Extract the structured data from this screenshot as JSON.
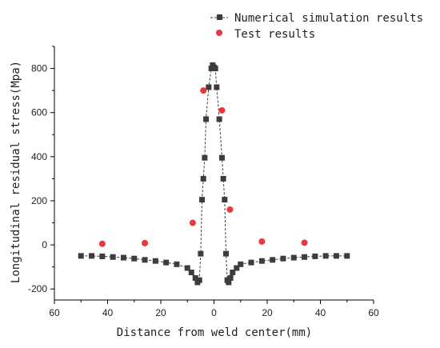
{
  "chart_data": {
    "type": "scatter",
    "title": "",
    "xlabel": "Distance from weld center(mm)",
    "ylabel": "Longitudinal residual stress(Mpa)",
    "xlim": [
      -60,
      60
    ],
    "ylim": [
      -250,
      900
    ],
    "x_tick_values": [
      -60,
      -40,
      -20,
      0,
      20,
      40,
      60
    ],
    "x_tick_labels": [
      "60",
      "40",
      "20",
      "0",
      "20",
      "40",
      "60"
    ],
    "y_ticks": [
      -200,
      0,
      200,
      400,
      600,
      800
    ],
    "grid": false,
    "legend_position": "top-right",
    "series": [
      {
        "name": "Numerical simulation results",
        "marker": "square",
        "line": "dashed",
        "color": "#3d3d3d",
        "x": [
          -50,
          -46,
          -42,
          -38,
          -34,
          -30,
          -26,
          -22,
          -18,
          -14,
          -10,
          -8.5,
          -7,
          -6.2,
          -5.5,
          -5,
          -4.5,
          -4,
          -3.5,
          -3,
          -2,
          -1,
          -0.5,
          0,
          0.5,
          1,
          2,
          3,
          3.5,
          4,
          4.5,
          5,
          5.5,
          6.2,
          7,
          8.5,
          10,
          14,
          18,
          22,
          26,
          30,
          34,
          38,
          42,
          46,
          50
        ],
        "y": [
          -50,
          -50,
          -52,
          -55,
          -58,
          -62,
          -68,
          -73,
          -80,
          -88,
          -105,
          -125,
          -150,
          -170,
          -160,
          -40,
          205,
          300,
          395,
          570,
          715,
          800,
          815,
          805,
          800,
          715,
          570,
          395,
          300,
          205,
          -40,
          -160,
          -170,
          -150,
          -125,
          -105,
          -88,
          -80,
          -73,
          -68,
          -62,
          -58,
          -55,
          -52,
          -50,
          -50,
          -50
        ]
      },
      {
        "name": "Test results",
        "marker": "circle",
        "line": "none",
        "color": "#e8383d",
        "x": [
          -42,
          -26,
          -8,
          -4,
          3,
          6,
          18,
          34
        ],
        "y": [
          5,
          8,
          100,
          700,
          610,
          160,
          15,
          10
        ]
      }
    ]
  }
}
